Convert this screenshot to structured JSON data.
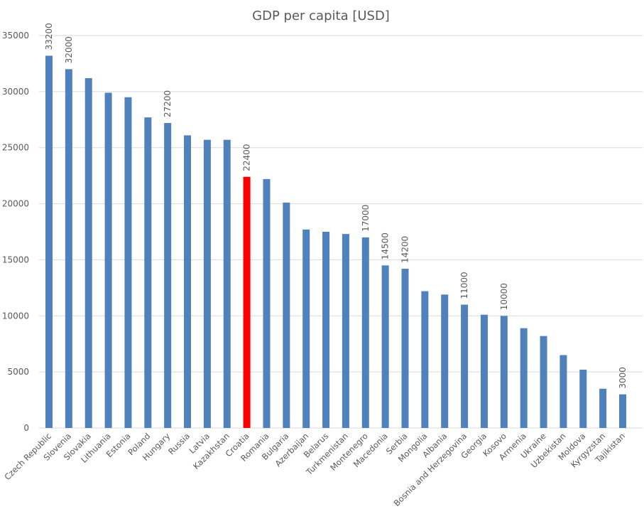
{
  "chart_data": {
    "type": "bar",
    "title": "GDP per capita [USD]",
    "xlabel": "",
    "ylabel": "",
    "ylim": [
      0,
      35000
    ],
    "yticks": [
      0,
      5000,
      10000,
      15000,
      20000,
      25000,
      30000,
      35000
    ],
    "grid": true,
    "legend": "none",
    "colors": {
      "default": "#4f81bd",
      "highlight": "#ff0000"
    },
    "highlight": "Croatia",
    "categories": [
      "Czech Republic",
      "Slovenia",
      "Slovakia",
      "Lithuania",
      "Estonia",
      "Poland",
      "Hungary",
      "Russia",
      "Latvia",
      "Kazakhstan",
      "Croatia",
      "Romania",
      "Bulgaria",
      "Azerbaijan",
      "Belarus",
      "Turkmenistan",
      "Montenegro",
      "Macedonia",
      "Serbia",
      "Mongolia",
      "Albania",
      "Bosnia and Herzegovina",
      "Georgia",
      "Kosovo",
      "Armenia",
      "Ukraine",
      "Uzbekistan",
      "Moldova",
      "Kyrgyzstan",
      "Tajikistan"
    ],
    "values": [
      33200,
      32000,
      31200,
      29900,
      29500,
      27700,
      27200,
      26100,
      25700,
      25700,
      22400,
      22200,
      20100,
      17700,
      17500,
      17300,
      17000,
      14500,
      14200,
      12200,
      11900,
      11000,
      10100,
      10000,
      8900,
      8200,
      6500,
      5200,
      3500,
      3000
    ],
    "data_labels": [
      "33200",
      "32000",
      "",
      "",
      "",
      "",
      "27200",
      "",
      "",
      "",
      "22400",
      "",
      "",
      "",
      "",
      "",
      "17000",
      "14500",
      "14200",
      "",
      "",
      "11000",
      "",
      "10000",
      "",
      "",
      "",
      "",
      "",
      "3000"
    ]
  }
}
